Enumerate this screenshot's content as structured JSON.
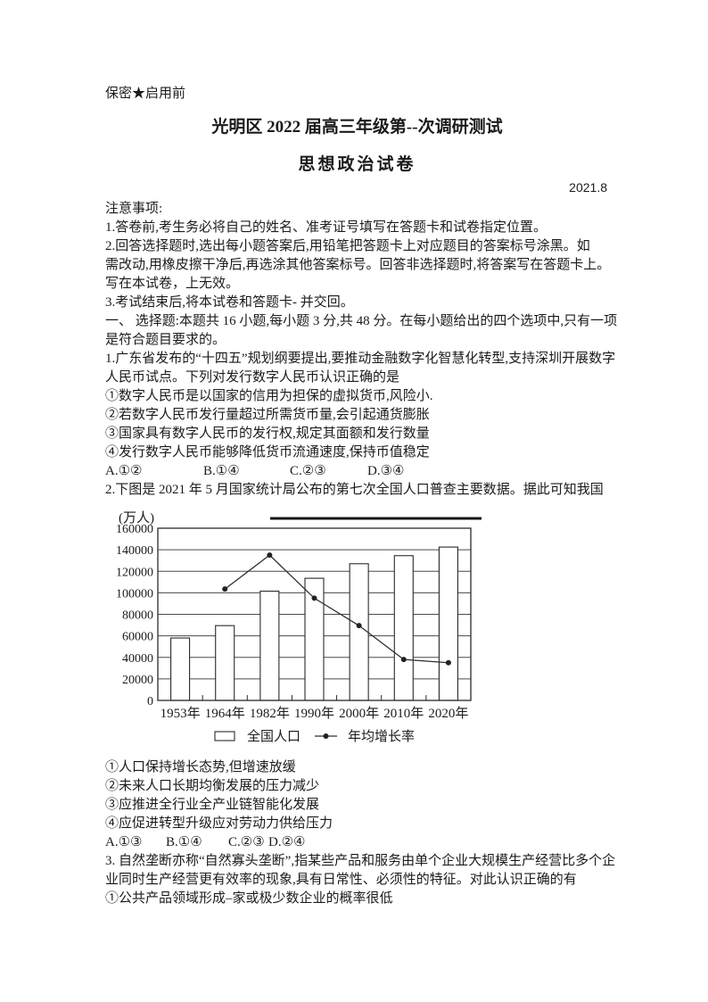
{
  "header": {
    "security": "保密★启用前",
    "title": "光明区 2022 届高三年级第--次调研测试",
    "subtitle": "思想政治试卷",
    "date": "2021.8"
  },
  "notice": {
    "heading": "注意事项:",
    "lines": [
      "1.答卷前,考生务必将自己的姓名、准考证号填写在答题卡和试卷指定位置。",
      "2.回答选择题时,选出每小题答案后,用铅笔把答题卡上对应题目的答案标号涂黑。如",
      "需改动,用橡皮擦干净后,再选涂其他答案标号。回答非选择题时,将答案写在答题卡上。",
      "写在本试卷，上无效。",
      "3.考试结束后,将本试卷和答题卡- 并交回。"
    ]
  },
  "section1": {
    "lines": [
      "一、 选择题:本题共 16 小题,每小题 3 分,共 48 分。在每小题给出的四个选项中,只有一项",
      "是符合题目要求的。"
    ]
  },
  "q1": {
    "stem_lines": [
      "1.广东省发布的“十四五”规划纲要提出,要推动金融数字化智慧化转型,支持深圳开展数字",
      "人民币试点。下列对发行数字人民币认识正确的是"
    ],
    "choices": [
      "①数字人民币是以国家的信用为担保的虚拟货币,风险小.",
      "②若数字人民币发行量超过所需货币量,会引起通货膨胀",
      "③国家具有数字人民币的发行权,规定其面额和发行数量",
      "④发行数字人民币能够降低货币流通速度,保持币值稳定"
    ],
    "answers": [
      "A.①②",
      "B.①④",
      "C.②③",
      "D.③④"
    ]
  },
  "q2": {
    "stem": "2.下图是 2021 年 5 月国家统计局公布的第七次全国人口普查主要数据。据此可知我国",
    "choices": [
      "①人口保持增长态势,但增速放缓",
      "②未来人口长期均衡发展的压力减少",
      "③应推进全行业全产业链智能化发展",
      "④应促进转型升级应对劳动力供给压力"
    ],
    "answers": [
      "A.①③",
      "B.①④",
      "C.②③",
      "D.②④"
    ]
  },
  "q3": {
    "stem_lines": [
      "3. 自然垄断亦称“自然寡头垄断”,指某些产品和服务由单个企业大规模生产经营比多个企",
      "业同时生产经营更有效率的现象,具有日常性、必须性的特征。对此认识正确的有"
    ],
    "choices": [
      "①公共产品领域形成–家或极少数企业的概率很低"
    ]
  },
  "chart_data": {
    "type": "bar",
    "categories": [
      "1953年",
      "1964年",
      "1982年",
      "1990年",
      "2000年",
      "2010年",
      "2020年"
    ],
    "series": [
      {
        "name": "全国人口",
        "type": "bar",
        "values": [
          58000,
          69500,
          101500,
          113500,
          127000,
          134500,
          142500
        ]
      },
      {
        "name": "年均增长率",
        "type": "line",
        "x": [
          "1964年",
          "1982年",
          "1990年",
          "2000年",
          "2010年",
          "2020年"
        ],
        "values_on_left_axis_scale": [
          103500,
          135000,
          95000,
          69500,
          38000,
          35000
        ]
      }
    ],
    "title": "",
    "xlabel": "",
    "ylabel": "(万人)",
    "ylim": [
      0,
      160000
    ],
    "ytick_step": 20000,
    "grid": true,
    "legend_position": "bottom"
  }
}
